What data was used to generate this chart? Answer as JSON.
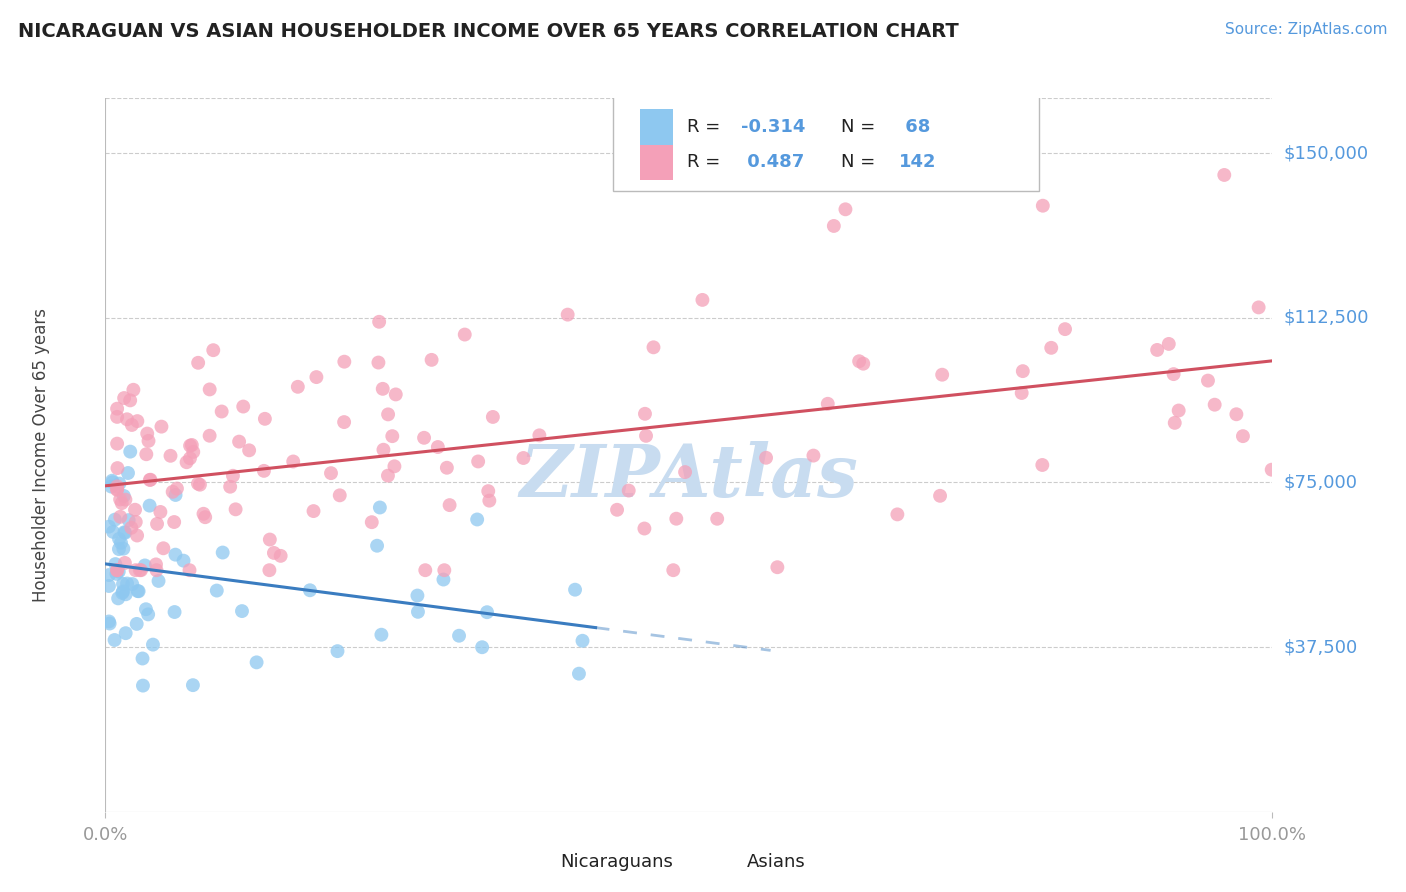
{
  "title": "NICARAGUAN VS ASIAN HOUSEHOLDER INCOME OVER 65 YEARS CORRELATION CHART",
  "source_text": "Source: ZipAtlas.com",
  "ylabel": "Householder Income Over 65 years",
  "color_blue": "#8EC8F0",
  "color_pink": "#F4A0B8",
  "color_trend_blue": "#3A7CC0",
  "color_trend_pink": "#D05060",
  "color_axis_labels": "#5599DD",
  "color_source": "#5599DD",
  "color_watermark": "#C8DCF0",
  "background_color": "#FFFFFF",
  "grid_color": "#CCCCCC",
  "title_color": "#222222",
  "tick_color": "#999999",
  "ylabel_color": "#444444"
}
